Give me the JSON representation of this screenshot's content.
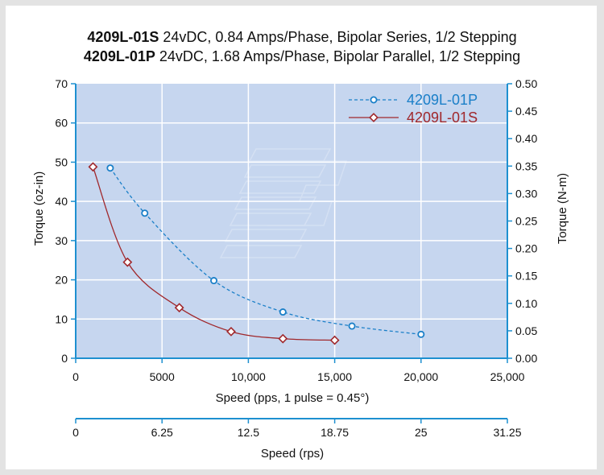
{
  "title_lines": [
    {
      "model": "4209L-01S",
      "spec": " 24vDC, 0.84  Amps/Phase, Bipolar Series, 1/2 Stepping"
    },
    {
      "model": "4209L-01P",
      "spec": " 24vDC, 1.68 Amps/Phase, Bipolar Parallel, 1/2 Stepping"
    }
  ],
  "colors": {
    "plot_bg": "#c6d6ef",
    "grid": "#ffffff",
    "axis": "#1e90d0",
    "series_p": "#1a7fc8",
    "series_s": "#a0282c"
  },
  "chart_data": {
    "type": "line",
    "xlabel": "Speed (pps, 1 pulse = 0.45°)",
    "ylabel": "Torque (oz-in)",
    "y2label": "Torque (N-m)",
    "x2label": "Speed (rps)",
    "xlim": [
      0,
      25000
    ],
    "ylim": [
      0,
      70
    ],
    "y2lim": [
      0,
      0.5
    ],
    "x_ticks": [
      "0",
      "5000",
      "10,000",
      "15,000",
      "20,000",
      "25,000"
    ],
    "y_ticks": [
      "0",
      "10",
      "20",
      "30",
      "40",
      "50",
      "60",
      "70"
    ],
    "y2_ticks": [
      "0.00",
      "0.05",
      "0.10",
      "0.15",
      "0.20",
      "0.25",
      "0.30",
      "0.35",
      "0.40",
      "0.45",
      "0.50"
    ],
    "x2_ticks": [
      "0",
      "6.25",
      "12.5",
      "18.75",
      "25",
      "31.25"
    ],
    "grid": true,
    "legend_position": "top-right",
    "series": [
      {
        "name": "4209L-01P",
        "marker": "circle",
        "dashed": true,
        "x": [
          2000,
          4000,
          8000,
          12000,
          16000,
          20000
        ],
        "y": [
          48.5,
          37,
          19.8,
          11.8,
          8.2,
          6.1
        ]
      },
      {
        "name": "4209L-01S",
        "marker": "diamond",
        "dashed": false,
        "x": [
          1000,
          3000,
          6000,
          9000,
          12000,
          15000
        ],
        "y": [
          48.8,
          24.5,
          12.9,
          6.8,
          5.0,
          4.6
        ]
      }
    ]
  }
}
